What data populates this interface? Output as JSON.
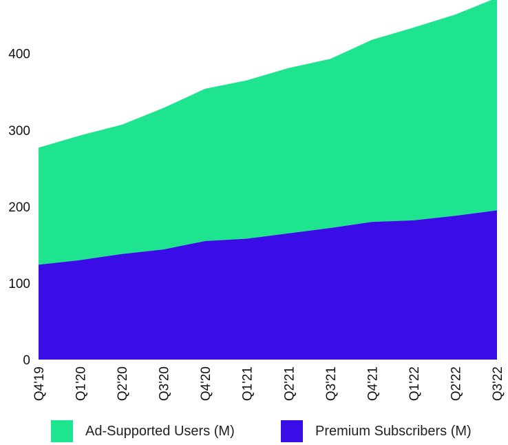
{
  "chart_data": {
    "type": "area",
    "stacked": true,
    "title": "",
    "xlabel": "",
    "ylabel": "",
    "categories": [
      "Q4'19",
      "Q1'20",
      "Q2'20",
      "Q3'20",
      "Q4'20",
      "Q1'21",
      "Q2'21",
      "Q3'21",
      "Q4'21",
      "Q1'22",
      "Q2'22",
      "Q3'22"
    ],
    "series": [
      {
        "name": "Premium Subscribers (M)",
        "color": "#3a0ce6",
        "values": [
          124,
          130,
          138,
          144,
          155,
          158,
          165,
          172,
          180,
          182,
          188,
          195
        ]
      },
      {
        "name": "Ad-Supported Users (M)",
        "color": "#1ee38f",
        "values": [
          153,
          163,
          169,
          185,
          199,
          207,
          216,
          221,
          238,
          252,
          263,
          278
        ]
      }
    ],
    "ylim": [
      0,
      470
    ],
    "yticks": [
      0,
      100,
      200,
      300,
      400
    ],
    "grid": false,
    "legend_position": "bottom",
    "legend_order": [
      "Ad-Supported Users (M)",
      "Premium Subscribers (M)"
    ]
  }
}
